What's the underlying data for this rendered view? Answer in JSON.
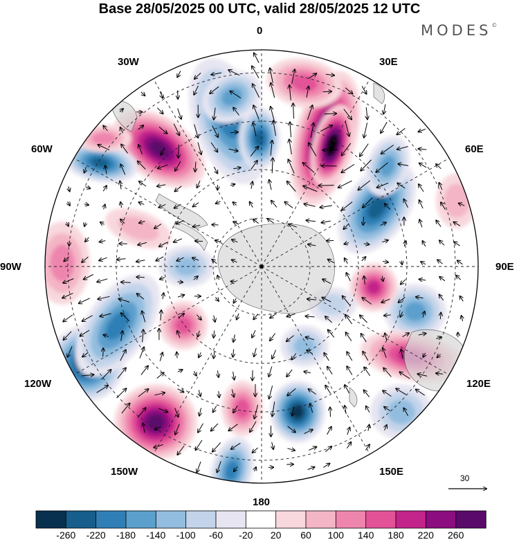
{
  "title": "Base 28/05/2025 00 UTC, valid 28/05/2025 12 UTC",
  "brand": "MODES",
  "brand_mark": "©",
  "map": {
    "projection": "south-polar-stereographic",
    "longitude_labels": {
      "top": "0",
      "upper_right": "30E",
      "right_upper": "60E",
      "right": "90E",
      "right_lower": "120E",
      "lower_right": "150E",
      "bottom": "180",
      "lower_left": "150W",
      "left_lower": "120W",
      "left": "90W",
      "left_upper": "60W",
      "upper_left": "30W"
    },
    "graticule": "dashed",
    "land_color": "#d7d7d7",
    "wind_vectors": true
  },
  "reference_vector": {
    "label": "30"
  },
  "colorbar": {
    "labels": [
      "-260",
      "-220",
      "-180",
      "-140",
      "-100",
      "-60",
      "-20",
      "20",
      "60",
      "100",
      "140",
      "180",
      "220",
      "260"
    ],
    "colors": [
      "#08304f",
      "#185e8c",
      "#2f7fb6",
      "#5b9fcc",
      "#93bddf",
      "#c3d4ea",
      "#e6e5f1",
      "#ffffff",
      "#f8d8dd",
      "#f4b5c6",
      "#ee85ad",
      "#e35297",
      "#c3248a",
      "#8b0d7f",
      "#5a0a6a"
    ]
  }
}
